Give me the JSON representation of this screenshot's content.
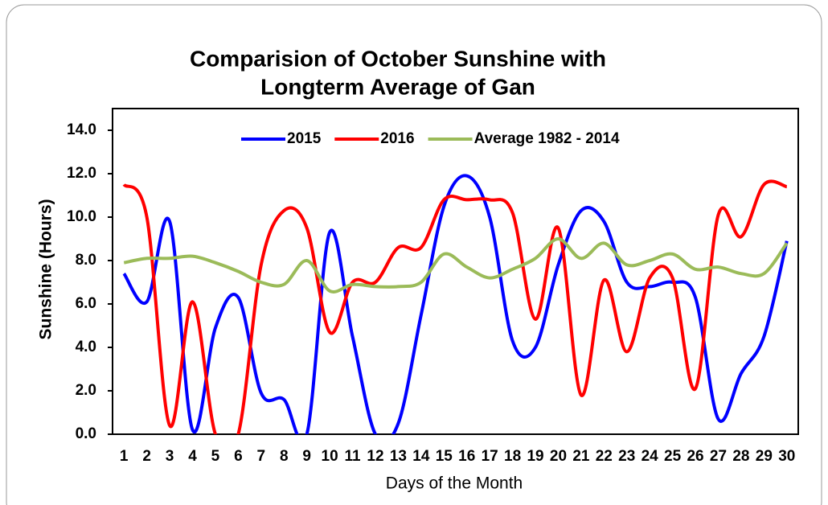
{
  "chart_data": {
    "type": "line",
    "title": "Comparision of October Sunshine with",
    "subtitle": "Longterm Average of Gan",
    "x_label": "Days of the Month",
    "y_label": "Sunshine (Hours)",
    "categories": [
      "1",
      "2",
      "3",
      "4",
      "5",
      "6",
      "7",
      "8",
      "9",
      "10",
      "11",
      "12",
      "13",
      "14",
      "15",
      "16",
      "17",
      "18",
      "19",
      "20",
      "21",
      "22",
      "23",
      "24",
      "25",
      "26",
      "27",
      "28",
      "29",
      "30"
    ],
    "series": [
      {
        "name": "2015",
        "color": "#0000ff",
        "values": [
          7.4,
          6.1,
          9.8,
          0.2,
          4.9,
          6.3,
          1.9,
          1.6,
          0.0,
          9.3,
          4.5,
          0.0,
          0.5,
          5.5,
          10.5,
          11.9,
          10.0,
          4.3,
          4.0,
          7.8,
          10.3,
          9.8,
          7.0,
          6.8,
          7.0,
          6.3,
          0.7,
          2.8,
          4.5,
          8.9
        ]
      },
      {
        "name": "2016",
        "color": "#ff0000",
        "values": [
          11.5,
          10.0,
          0.4,
          6.1,
          0.0,
          0.0,
          7.8,
          10.3,
          9.5,
          4.7,
          7.0,
          7.0,
          8.6,
          8.6,
          10.8,
          10.8,
          10.8,
          10.2,
          5.3,
          9.5,
          1.8,
          7.1,
          3.8,
          7.2,
          7.2,
          2.1,
          10.1,
          9.1,
          11.5,
          11.4
        ]
      },
      {
        "name": "Average 1982 - 2014",
        "color": "#9bbb59",
        "values": [
          7.9,
          8.1,
          8.1,
          8.2,
          7.9,
          7.5,
          7.0,
          6.9,
          8.0,
          6.6,
          6.9,
          6.8,
          6.8,
          7.0,
          8.3,
          7.7,
          7.2,
          7.6,
          8.1,
          9.0,
          8.1,
          8.8,
          7.8,
          8.0,
          8.3,
          7.6,
          7.7,
          7.4,
          7.4,
          8.8
        ]
      }
    ],
    "ylim": [
      0,
      15
    ],
    "yticks": [
      {
        "value": 0,
        "label": "0.0"
      },
      {
        "value": 2,
        "label": "2.0"
      },
      {
        "value": 4,
        "label": "4.0"
      },
      {
        "value": 6,
        "label": "6.0"
      },
      {
        "value": 8,
        "label": "8.0"
      },
      {
        "value": 10,
        "label": "10.0"
      },
      {
        "value": 12,
        "label": "12.0"
      },
      {
        "value": 14,
        "label": "14.0"
      }
    ],
    "legend": "top",
    "smooth": true
  }
}
